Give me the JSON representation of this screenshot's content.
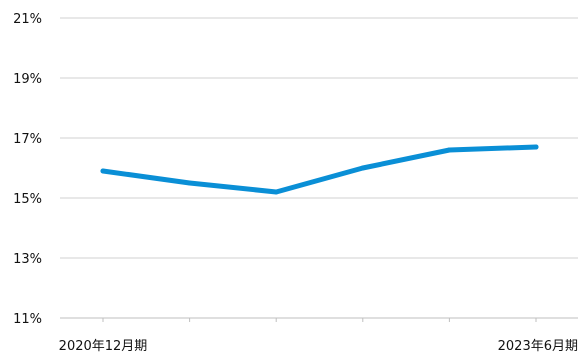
{
  "chart_data": {
    "type": "line",
    "title": "",
    "xlabel": "",
    "ylabel": "",
    "x_tick_labels": [
      "2020年12月期",
      "",
      "",
      "",
      "",
      "2023年6月期"
    ],
    "y_tick_labels": [
      "11%",
      "13%",
      "15%",
      "17%",
      "19%",
      "21%"
    ],
    "y_ticks": [
      11,
      13,
      15,
      17,
      19,
      21
    ],
    "ylim": [
      11,
      21
    ],
    "grid": "horizontal",
    "legend": "none",
    "series": [
      {
        "values": [
          15.9,
          15.5,
          15.2,
          16.0,
          16.6,
          16.7
        ],
        "color": "#0a8fd6"
      }
    ]
  }
}
